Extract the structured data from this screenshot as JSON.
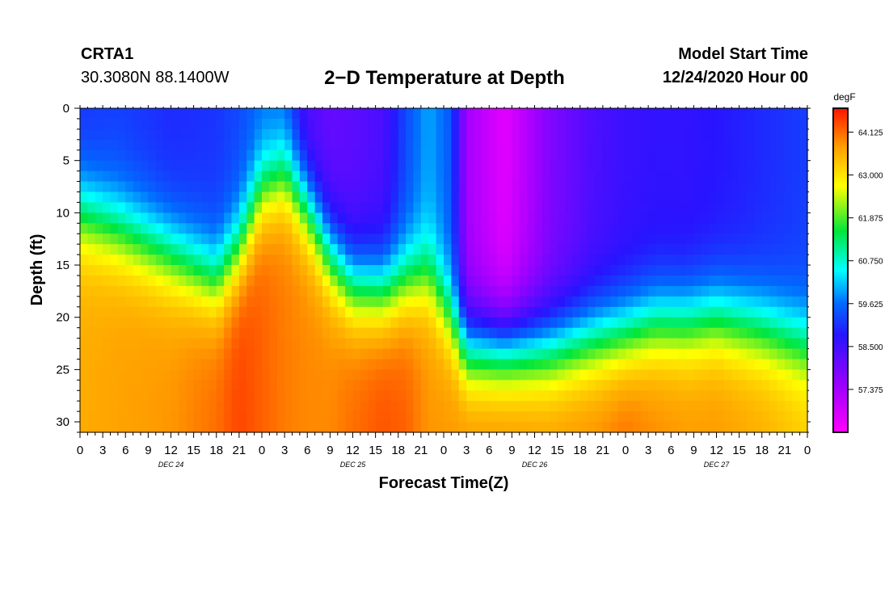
{
  "header": {
    "station": "CRTA1",
    "coords": "30.3080N 88.1400W",
    "title": "2−D Temperature at Depth",
    "start_label": "Model Start Time",
    "start_value": "12/24/2020 Hour 00"
  },
  "chart_data": {
    "type": "heatmap",
    "title": "2−D Temperature at Depth",
    "xlabel": "Forecast Time(Z)",
    "ylabel": "Depth (ft)",
    "x_tick_labels": [
      "0",
      "3",
      "6",
      "9",
      "12",
      "15",
      "18",
      "21",
      "0",
      "3",
      "6",
      "9",
      "12",
      "15",
      "18",
      "21",
      "0",
      "3",
      "6",
      "9",
      "12",
      "15",
      "18",
      "21",
      "0",
      "3",
      "6",
      "9",
      "12",
      "15",
      "18",
      "21",
      "0"
    ],
    "x_range_hours": [
      0,
      96
    ],
    "date_labels": [
      {
        "label": "DEC 24",
        "hour": 12
      },
      {
        "label": "DEC 25",
        "hour": 36
      },
      {
        "label": "DEC 26",
        "hour": 60
      },
      {
        "label": "DEC 27",
        "hour": 84
      }
    ],
    "y_tick_labels": [
      "0",
      "5",
      "10",
      "15",
      "20",
      "25",
      "30"
    ],
    "y_range_ft": [
      0,
      31
    ],
    "colorbar": {
      "unit": "degF",
      "tick_labels": [
        "64.125",
        "63.000",
        "61.875",
        "60.750",
        "59.625",
        "58.500",
        "57.375"
      ],
      "range": [
        56.25,
        64.75
      ]
    },
    "profiles": [
      {
        "hour": 0,
        "t_top": 59.1,
        "d_mid": 10.0,
        "t_bot": 63.6
      },
      {
        "hour": 5,
        "t_top": 59.2,
        "d_mid": 11.5,
        "t_bot": 63.7
      },
      {
        "hour": 12,
        "t_top": 59.0,
        "d_mid": 14.0,
        "t_bot": 63.8
      },
      {
        "hour": 18,
        "t_top": 59.1,
        "d_mid": 16.5,
        "t_bot": 64.1
      },
      {
        "hour": 21,
        "t_top": 59.3,
        "d_mid": 13.5,
        "t_bot": 64.4
      },
      {
        "hour": 24,
        "t_top": 59.6,
        "d_mid": 8.0,
        "t_bot": 64.2
      },
      {
        "hour": 27,
        "t_top": 59.5,
        "d_mid": 6.5,
        "t_bot": 64.0
      },
      {
        "hour": 30,
        "t_top": 58.3,
        "d_mid": 9.5,
        "t_bot": 63.9
      },
      {
        "hour": 33,
        "t_top": 58.1,
        "d_mid": 14.0,
        "t_bot": 63.9
      },
      {
        "hour": 36,
        "t_top": 58.2,
        "d_mid": 17.0,
        "t_bot": 64.1
      },
      {
        "hour": 40,
        "t_top": 58.4,
        "d_mid": 17.5,
        "t_bot": 64.3
      },
      {
        "hour": 43,
        "t_top": 59.3,
        "d_mid": 16.5,
        "t_bot": 64.2
      },
      {
        "hour": 46,
        "t_top": 60.0,
        "d_mid": 16.0,
        "t_bot": 63.8
      },
      {
        "hour": 49,
        "t_top": 59.4,
        "d_mid": 20.0,
        "t_bot": 63.8
      },
      {
        "hour": 51,
        "t_top": 57.4,
        "d_mid": 23.0,
        "t_bot": 63.9
      },
      {
        "hour": 56,
        "t_top": 56.6,
        "d_mid": 23.0,
        "t_bot": 63.9
      },
      {
        "hour": 62,
        "t_top": 57.8,
        "d_mid": 23.0,
        "t_bot": 63.8
      },
      {
        "hour": 68,
        "t_top": 58.4,
        "d_mid": 22.0,
        "t_bot": 63.9
      },
      {
        "hour": 72,
        "t_top": 58.6,
        "d_mid": 21.5,
        "t_bot": 64.1
      },
      {
        "hour": 76,
        "t_top": 58.7,
        "d_mid": 20.5,
        "t_bot": 63.9
      },
      {
        "hour": 80,
        "t_top": 58.7,
        "d_mid": 20.5,
        "t_bot": 63.8
      },
      {
        "hour": 84,
        "t_top": 58.8,
        "d_mid": 20.0,
        "t_bot": 63.8
      },
      {
        "hour": 90,
        "t_top": 59.0,
        "d_mid": 21.0,
        "t_bot": 63.6
      },
      {
        "hour": 96,
        "t_top": 59.2,
        "d_mid": 22.5,
        "t_bot": 63.3
      }
    ]
  }
}
